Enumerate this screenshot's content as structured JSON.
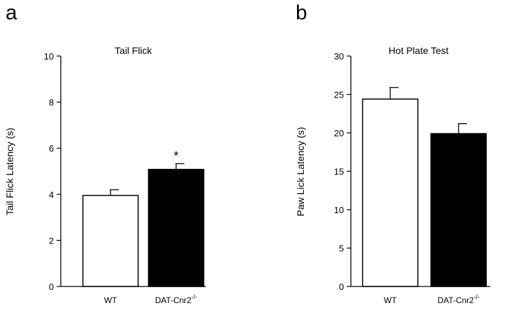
{
  "panels": [
    {
      "letter": "a",
      "chart_data": {
        "type": "bar",
        "title": "Tail Flick",
        "xlabel": "",
        "ylabel": "Tail Flick Latency  (s)",
        "categories": [
          "WT",
          "DAT-Cnr2"
        ],
        "category_superscripts": [
          "",
          "-/-"
        ],
        "values": [
          3.95,
          5.08
        ],
        "errors": [
          0.25,
          0.25
        ],
        "bar_colors": [
          "#ffffff",
          "#000000"
        ],
        "annotations": [
          "",
          "*"
        ],
        "ylim": [
          0,
          10
        ],
        "yticks": [
          0,
          2,
          4,
          6,
          8,
          10
        ],
        "grid": false
      }
    },
    {
      "letter": "b",
      "chart_data": {
        "type": "bar",
        "title": "Hot Plate Test",
        "xlabel": "",
        "ylabel": "Paw Lick Latency  (s)",
        "categories": [
          "WT",
          "DAT-Cnr2"
        ],
        "category_superscripts": [
          "",
          "-/-"
        ],
        "values": [
          24.4,
          19.9
        ],
        "errors": [
          1.5,
          1.3
        ],
        "bar_colors": [
          "#ffffff",
          "#000000"
        ],
        "annotations": [
          "",
          ""
        ],
        "ylim": [
          0,
          30
        ],
        "yticks": [
          0,
          5,
          10,
          15,
          20,
          25,
          30
        ],
        "grid": false
      }
    }
  ]
}
